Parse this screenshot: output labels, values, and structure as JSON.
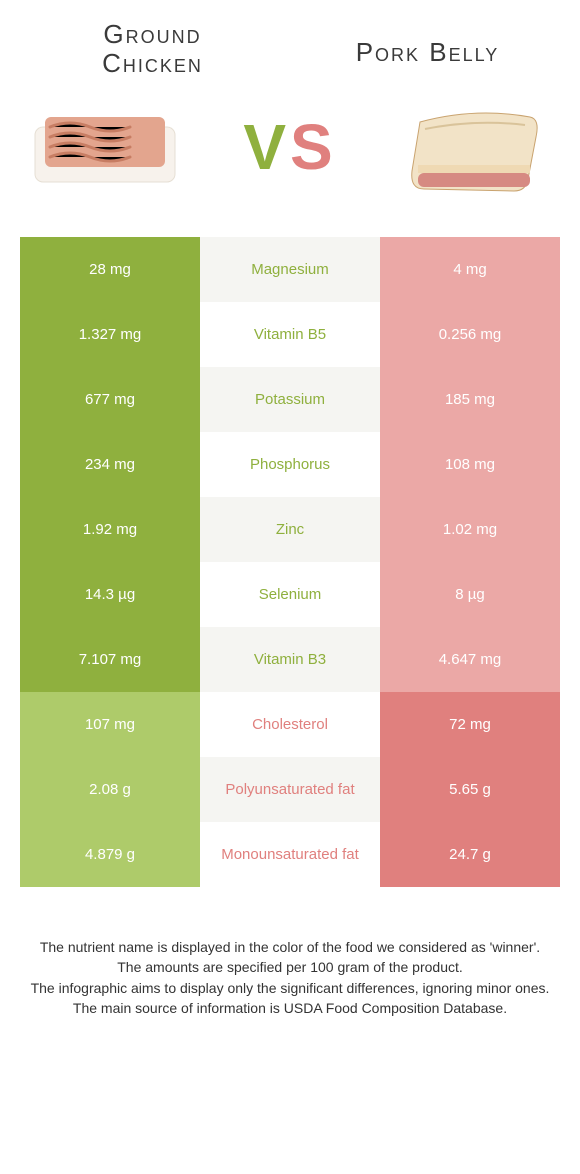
{
  "food_left": {
    "name": "Ground\nChicken",
    "color_strong": "#8fb03e",
    "color_soft": "#aecb6a"
  },
  "food_right": {
    "name": "Pork Belly",
    "color_strong": "#e0807e",
    "color_soft": "#eba8a6"
  },
  "vs": {
    "v": "V",
    "s": "S"
  },
  "mid_bg_a": "#f5f5f2",
  "mid_bg_b": "#ffffff",
  "rows": [
    {
      "label": "Magnesium",
      "left": "28 mg",
      "right": "4 mg",
      "winner": "left"
    },
    {
      "label": "Vitamin B5",
      "left": "1.327 mg",
      "right": "0.256 mg",
      "winner": "left"
    },
    {
      "label": "Potassium",
      "left": "677 mg",
      "right": "185 mg",
      "winner": "left"
    },
    {
      "label": "Phosphorus",
      "left": "234 mg",
      "right": "108 mg",
      "winner": "left"
    },
    {
      "label": "Zinc",
      "left": "1.92 mg",
      "right": "1.02 mg",
      "winner": "left"
    },
    {
      "label": "Selenium",
      "left": "14.3 µg",
      "right": "8 µg",
      "winner": "left"
    },
    {
      "label": "Vitamin B3",
      "left": "7.107 mg",
      "right": "4.647 mg",
      "winner": "left"
    },
    {
      "label": "Cholesterol",
      "left": "107 mg",
      "right": "72 mg",
      "winner": "right"
    },
    {
      "label": "Polyunsaturated fat",
      "left": "2.08 g",
      "right": "5.65 g",
      "winner": "right"
    },
    {
      "label": "Monounsaturated fat",
      "left": "4.879 g",
      "right": "24.7 g",
      "winner": "right"
    }
  ],
  "footnote": [
    "The nutrient name is displayed in the color of the food we considered as 'winner'.",
    "The amounts are specified per 100 gram of the product.",
    "The infographic aims to display only the significant differences, ignoring minor ones.",
    "The main source of information is USDA Food Composition Database."
  ]
}
